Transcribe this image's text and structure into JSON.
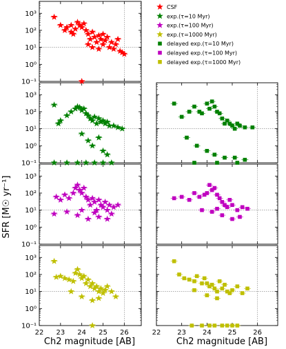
{
  "chart_data": {
    "type": "scatter",
    "ylabel": "SFR [M☉ yr⁻¹]",
    "xlabel": "Ch2 magnitude [AB]",
    "x_ticks": [
      "22",
      "23",
      "24",
      "25",
      "26"
    ],
    "y_ticks": [
      "10⁻¹",
      "10⁰",
      "10¹",
      "10²",
      "10³"
    ],
    "xlim": [
      22,
      26.8
    ],
    "ylim_log10": [
      -1,
      3.7
    ],
    "reference_lines": {
      "x": 26,
      "y": 10
    },
    "legend": [
      {
        "label": "CSF",
        "color": "#ff0000",
        "marker": "star"
      },
      {
        "label": "exp.(τ=10 Myr)",
        "color": "#008000",
        "marker": "star"
      },
      {
        "label": "exp.(τ=100 Myr)",
        "color": "#bf00bf",
        "marker": "star"
      },
      {
        "label": "exp.(τ=1000 Myr)",
        "color": "#bfbf00",
        "marker": "star"
      },
      {
        "label": "delayed exp.(τ=10 Myr)",
        "color": "#008000",
        "marker": "square"
      },
      {
        "label": "delayed exp.(τ=100 Myr)",
        "color": "#bf00bf",
        "marker": "square"
      },
      {
        "label": "delayed exp.(τ=1000 Myr)",
        "color": "#bfbf00",
        "marker": "square"
      }
    ],
    "panels": [
      {
        "row": 0,
        "col": 0,
        "series": "CSF",
        "color": "#ff0000",
        "marker": "star",
        "points": [
          [
            22.7,
            600
          ],
          [
            23.0,
            200
          ],
          [
            23.2,
            100
          ],
          [
            23.3,
            150
          ],
          [
            23.5,
            80
          ],
          [
            23.6,
            60
          ],
          [
            23.7,
            120
          ],
          [
            23.8,
            300
          ],
          [
            23.9,
            200
          ],
          [
            24.0,
            150
          ],
          [
            24.1,
            250
          ],
          [
            24.2,
            100
          ],
          [
            24.3,
            60
          ],
          [
            24.4,
            30
          ],
          [
            24.5,
            80
          ],
          [
            24.6,
            40
          ],
          [
            24.7,
            20
          ],
          [
            24.8,
            50
          ],
          [
            24.9,
            30
          ],
          [
            25.0,
            15
          ],
          [
            25.1,
            25
          ],
          [
            25.2,
            40
          ],
          [
            25.3,
            10
          ],
          [
            25.4,
            20
          ],
          [
            25.5,
            8
          ],
          [
            25.6,
            15
          ],
          [
            25.7,
            30
          ],
          [
            25.8,
            6
          ],
          [
            25.9,
            5
          ],
          [
            26.0,
            4
          ],
          [
            24.5,
            10
          ],
          [
            24.3,
            15
          ],
          [
            24.0,
            0.1
          ],
          [
            23.5,
            200
          ],
          [
            25.0,
            60
          ],
          [
            24.8,
            8
          ]
        ]
      },
      {
        "row": 1,
        "col": 0,
        "series": "exp.(τ=10 Myr)",
        "color": "#008000",
        "marker": "star",
        "points": [
          [
            22.7,
            250
          ],
          [
            22.9,
            20
          ],
          [
            23.0,
            30
          ],
          [
            23.3,
            60
          ],
          [
            23.5,
            100
          ],
          [
            23.7,
            150
          ],
          [
            23.8,
            200
          ],
          [
            23.9,
            180
          ],
          [
            24.0,
            120
          ],
          [
            24.1,
            150
          ],
          [
            24.2,
            80
          ],
          [
            24.3,
            60
          ],
          [
            24.4,
            40
          ],
          [
            24.5,
            30
          ],
          [
            24.6,
            50
          ],
          [
            24.7,
            20
          ],
          [
            24.8,
            40
          ],
          [
            24.9,
            25
          ],
          [
            25.0,
            30
          ],
          [
            25.1,
            20
          ],
          [
            25.2,
            25
          ],
          [
            25.3,
            15
          ],
          [
            25.5,
            15
          ],
          [
            25.7,
            12
          ],
          [
            25.9,
            10
          ],
          [
            24.0,
            5
          ],
          [
            24.3,
            2
          ],
          [
            24.5,
            1
          ],
          [
            25.0,
            0.5
          ],
          [
            25.2,
            0.3
          ],
          [
            24.8,
            3
          ],
          [
            22.7,
            0.1
          ],
          [
            23.3,
            0.1
          ],
          [
            23.8,
            0.1
          ],
          [
            24.2,
            0.1
          ],
          [
            24.6,
            0.1
          ],
          [
            25.0,
            0.1
          ],
          [
            25.4,
            0.1
          ]
        ]
      },
      {
        "row": 1,
        "col": 1,
        "series": "delayed exp.(τ=10 Myr)",
        "color": "#008000",
        "marker": "square",
        "points": [
          [
            22.7,
            300
          ],
          [
            23.0,
            50
          ],
          [
            23.3,
            100
          ],
          [
            23.5,
            200
          ],
          [
            23.7,
            100
          ],
          [
            23.8,
            80
          ],
          [
            24.0,
            300
          ],
          [
            24.1,
            150
          ],
          [
            24.2,
            400
          ],
          [
            24.3,
            200
          ],
          [
            24.4,
            100
          ],
          [
            24.5,
            80
          ],
          [
            24.6,
            40
          ],
          [
            24.7,
            20
          ],
          [
            24.8,
            30
          ],
          [
            24.9,
            20
          ],
          [
            25.0,
            15
          ],
          [
            25.1,
            10
          ],
          [
            25.2,
            20
          ],
          [
            25.3,
            15
          ],
          [
            25.5,
            12
          ],
          [
            25.8,
            12
          ],
          [
            23.2,
            3
          ],
          [
            23.6,
            1
          ],
          [
            24.0,
            0.5
          ],
          [
            24.3,
            0.3
          ],
          [
            24.7,
            0.2
          ],
          [
            25.1,
            0.2
          ],
          [
            25.5,
            0.15
          ],
          [
            23.5,
            0.1
          ],
          [
            24.4,
            0.1
          ],
          [
            25.2,
            0.1
          ]
        ]
      },
      {
        "row": 2,
        "col": 0,
        "series": "exp.(τ=100 Myr)",
        "color": "#bf00bf",
        "marker": "star",
        "points": [
          [
            22.7,
            6
          ],
          [
            22.8,
            60
          ],
          [
            23.0,
            40
          ],
          [
            23.2,
            80
          ],
          [
            23.4,
            50
          ],
          [
            23.6,
            100
          ],
          [
            23.7,
            200
          ],
          [
            23.8,
            300
          ],
          [
            23.9,
            150
          ],
          [
            24.0,
            100
          ],
          [
            24.1,
            200
          ],
          [
            24.2,
            60
          ],
          [
            24.3,
            40
          ],
          [
            24.4,
            20
          ],
          [
            24.5,
            50
          ],
          [
            24.6,
            30
          ],
          [
            24.7,
            10
          ],
          [
            24.8,
            40
          ],
          [
            24.9,
            20
          ],
          [
            25.0,
            15
          ],
          [
            25.1,
            30
          ],
          [
            25.2,
            10
          ],
          [
            25.3,
            20
          ],
          [
            25.5,
            15
          ],
          [
            25.7,
            20
          ],
          [
            23.3,
            8
          ],
          [
            23.8,
            5
          ],
          [
            24.3,
            3
          ],
          [
            24.8,
            4
          ],
          [
            25.2,
            3
          ],
          [
            24.6,
            7
          ],
          [
            24.0,
            10
          ],
          [
            25.4,
            6
          ]
        ]
      },
      {
        "row": 2,
        "col": 1,
        "series": "delayed exp.(τ=100 Myr)",
        "color": "#bf00bf",
        "marker": "square",
        "points": [
          [
            22.7,
            50
          ],
          [
            23.0,
            60
          ],
          [
            23.3,
            40
          ],
          [
            23.5,
            100
          ],
          [
            23.7,
            60
          ],
          [
            23.9,
            80
          ],
          [
            24.0,
            100
          ],
          [
            24.1,
            300
          ],
          [
            24.2,
            150
          ],
          [
            24.3,
            200
          ],
          [
            24.4,
            80
          ],
          [
            24.5,
            50
          ],
          [
            24.6,
            30
          ],
          [
            24.7,
            20
          ],
          [
            24.8,
            15
          ],
          [
            24.9,
            40
          ],
          [
            25.0,
            20
          ],
          [
            25.2,
            10
          ],
          [
            25.4,
            15
          ],
          [
            25.6,
            12
          ],
          [
            23.8,
            10
          ],
          [
            24.2,
            8
          ],
          [
            24.6,
            5
          ],
          [
            25.0,
            3
          ],
          [
            25.3,
            4
          ],
          [
            24.4,
            12
          ]
        ]
      },
      {
        "row": 3,
        "col": 0,
        "series": "exp.(τ=1000 Myr)",
        "color": "#bfbf00",
        "marker": "star",
        "points": [
          [
            22.7,
            600
          ],
          [
            22.8,
            70
          ],
          [
            23.0,
            80
          ],
          [
            23.2,
            60
          ],
          [
            23.4,
            50
          ],
          [
            23.6,
            40
          ],
          [
            23.7,
            120
          ],
          [
            23.8,
            200
          ],
          [
            23.9,
            100
          ],
          [
            24.0,
            60
          ],
          [
            24.1,
            80
          ],
          [
            24.2,
            30
          ],
          [
            24.3,
            50
          ],
          [
            24.4,
            20
          ],
          [
            24.5,
            30
          ],
          [
            24.6,
            15
          ],
          [
            24.7,
            20
          ],
          [
            24.8,
            10
          ],
          [
            24.9,
            15
          ],
          [
            25.0,
            8
          ],
          [
            25.1,
            12
          ],
          [
            25.2,
            20
          ],
          [
            25.4,
            10
          ],
          [
            25.6,
            5
          ],
          [
            23.5,
            10
          ],
          [
            24.0,
            5
          ],
          [
            24.5,
            3
          ],
          [
            24.8,
            4
          ],
          [
            24.5,
            0.1
          ]
        ]
      },
      {
        "row": 3,
        "col": 1,
        "series": "delayed exp.(τ=1000 Myr)",
        "color": "#bfbf00",
        "marker": "square",
        "points": [
          [
            22.7,
            600
          ],
          [
            22.9,
            100
          ],
          [
            23.1,
            60
          ],
          [
            23.3,
            50
          ],
          [
            23.5,
            40
          ],
          [
            23.6,
            80
          ],
          [
            23.8,
            30
          ],
          [
            23.9,
            60
          ],
          [
            24.0,
            30
          ],
          [
            24.1,
            20
          ],
          [
            24.2,
            25
          ],
          [
            24.3,
            15
          ],
          [
            24.4,
            10
          ],
          [
            24.5,
            40
          ],
          [
            24.6,
            15
          ],
          [
            24.7,
            25
          ],
          [
            24.8,
            10
          ],
          [
            24.9,
            8
          ],
          [
            25.0,
            12
          ],
          [
            25.2,
            20
          ],
          [
            25.4,
            8
          ],
          [
            25.6,
            15
          ],
          [
            23.5,
            12
          ],
          [
            24.0,
            6
          ],
          [
            24.4,
            4
          ],
          [
            23.4,
            0.1
          ],
          [
            23.8,
            0.1
          ],
          [
            24.1,
            0.1
          ],
          [
            24.3,
            0.1
          ],
          [
            24.6,
            0.1
          ],
          [
            24.8,
            0.1
          ],
          [
            25.0,
            0.1
          ],
          [
            25.2,
            0.1
          ]
        ]
      }
    ]
  }
}
